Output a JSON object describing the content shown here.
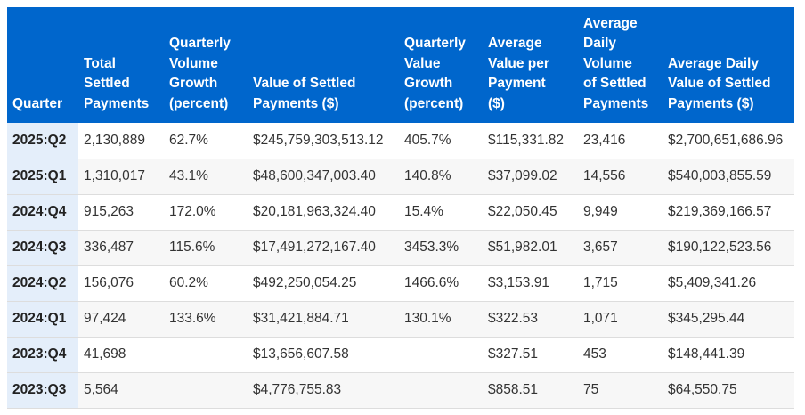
{
  "table": {
    "headers": [
      "Quarter",
      "Total\nSettled\nPayments",
      "Quarterly\nVolume\nGrowth\n(percent)",
      "Value of Settled\nPayments ($)",
      "Quarterly\nValue\nGrowth\n(percent)",
      "Average\nValue per\nPayment\n($)",
      "Average\nDaily\nVolume\nof Settled\nPayments",
      "Average Daily\nValue of Settled\nPayments ($)"
    ],
    "rows": [
      [
        "2025:Q2",
        "2,130,889",
        "62.7%",
        "$245,759,303,513.12",
        "405.7%",
        "$115,331.82",
        "23,416",
        "$2,700,651,686.96"
      ],
      [
        "2025:Q1",
        "1,310,017",
        "43.1%",
        "$48,600,347,003.40",
        "140.8%",
        "$37,099.02",
        "14,556",
        "$540,003,855.59"
      ],
      [
        "2024:Q4",
        "915,263",
        "172.0%",
        "$20,181,963,324.40",
        "15.4%",
        "$22,050.45",
        "9,949",
        "$219,369,166.57"
      ],
      [
        "2024:Q3",
        "336,487",
        "115.6%",
        "$17,491,272,167.40",
        "3453.3%",
        "$51,982.01",
        "3,657",
        "$190,122,523.56"
      ],
      [
        "2024:Q2",
        "156,076",
        "60.2%",
        "$492,250,054.25",
        "1466.6%",
        "$3,153.91",
        "1,715",
        "$5,409,341.26"
      ],
      [
        "2024:Q1",
        "97,424",
        "133.6%",
        "$31,421,884.71",
        "130.1%",
        "$322.53",
        "1,071",
        "$345,295.44"
      ],
      [
        "2023:Q4",
        "41,698",
        "",
        "$13,656,607.58",
        "",
        "$327.51",
        "453",
        "$148,441.39"
      ],
      [
        "2023:Q3",
        "5,564",
        "",
        "$4,776,755.83",
        "",
        "$858.51",
        "75",
        "$64,550.75"
      ]
    ]
  },
  "colors": {
    "header_bg": "#0066cc",
    "header_text": "#ffffff",
    "first_col_bg": "#e4eefa",
    "stripe_bg": "#f7f7f7"
  }
}
